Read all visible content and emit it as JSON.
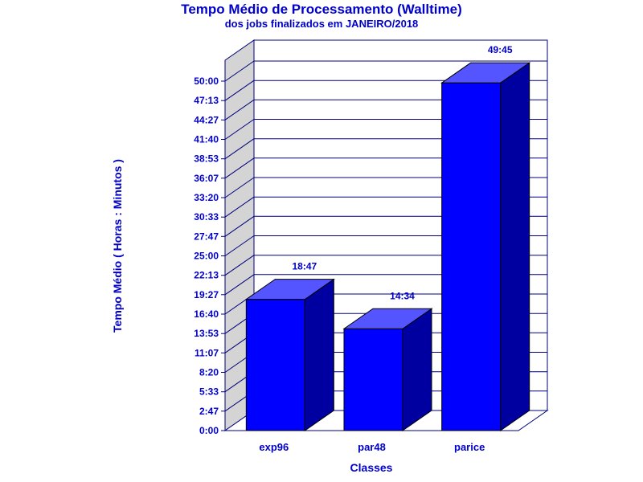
{
  "chart_data": {
    "type": "bar",
    "title": "Tempo Médio de Processamento (Walltime)",
    "subtitle": "dos jobs finalizados em JANEIRO/2018",
    "xlabel": "Classes",
    "ylabel": "Tempo Médio ( Horas : Minutos )",
    "categories": [
      "exp96",
      "par48",
      "parice"
    ],
    "values": [
      18.783,
      14.567,
      49.75
    ],
    "value_labels": [
      "18:47",
      "14:34",
      "49:45"
    ],
    "ylim": [
      0,
      50
    ],
    "y_tick_values": [
      0,
      2.783,
      5.55,
      8.333,
      11.117,
      13.883,
      16.667,
      19.45,
      22.217,
      25,
      27.783,
      30.55,
      33.333,
      36.117,
      38.883,
      41.667,
      44.45,
      47.217,
      50
    ],
    "y_tick_labels": [
      "0:00",
      "2:47",
      "5:33",
      "8:20",
      "11:07",
      "13:53",
      "16:40",
      "19:27",
      "22:13",
      "25:00",
      "27:47",
      "30:33",
      "33:20",
      "36:07",
      "38:53",
      "41:40",
      "44:27",
      "47:13",
      "50:00"
    ],
    "grid": true,
    "style": "3d"
  },
  "colors": {
    "text": "#0000cc",
    "bar_front": "#0000ff",
    "bar_top": "#5555ff",
    "bar_side": "#0000a0",
    "wall": "#d4d4d4",
    "grid": "#000080"
  }
}
